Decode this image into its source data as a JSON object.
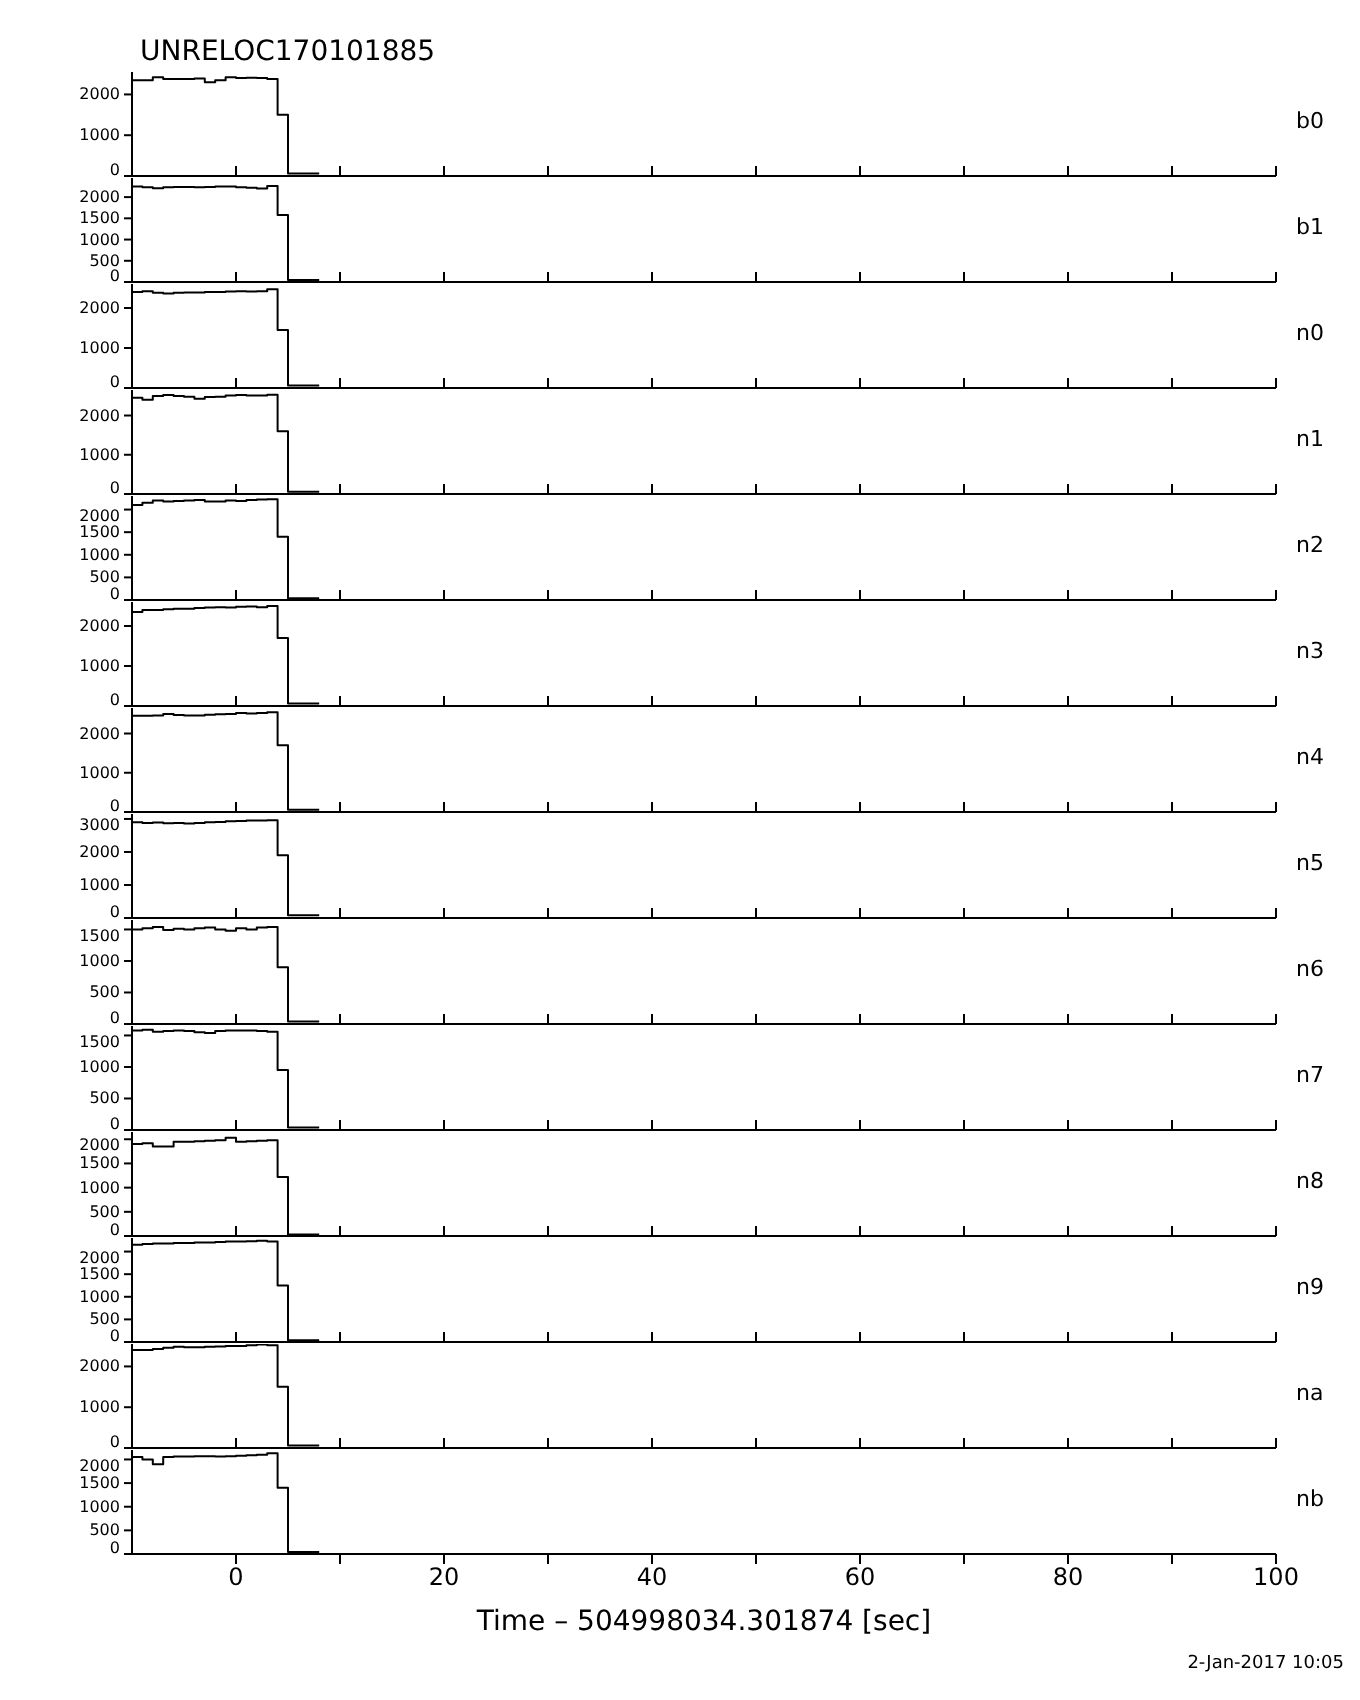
{
  "chart_data": [
    {
      "type": "histogram",
      "title": "UNRELOC170101885",
      "tick_labels": "y",
      "bins": [
        -10,
        -9,
        -8,
        -7,
        -6,
        -5,
        -4,
        -3,
        -2,
        -1,
        0,
        1,
        2,
        3,
        4,
        5,
        6,
        7,
        8
      ],
      "xlim": [
        -10,
        100
      ],
      "xticks": [
        0,
        {
          "value": 10,
          "label": null
        },
        20,
        {
          "value": 30,
          "label": null
        },
        40,
        {
          "value": 50,
          "label": null
        },
        60,
        {
          "value": 70,
          "label": null
        },
        80,
        {
          "value": 90,
          "label": null
        },
        100
      ],
      "ylim": [
        0,
        2550
      ],
      "yticks": [
        0,
        1000,
        2000
      ],
      "series": [
        {
          "name": "b0",
          "color": "#000000",
          "values": [
            2350,
            2350,
            2420,
            2380,
            2380,
            2380,
            2390,
            2300,
            2350,
            2420,
            2400,
            2410,
            2400,
            2380,
            1500,
            60,
            60,
            60
          ]
        }
      ]
    },
    {
      "type": "histogram",
      "tick_labels": "y",
      "bins": [
        -10,
        -9,
        -8,
        -7,
        -6,
        -5,
        -4,
        -3,
        -2,
        -1,
        0,
        1,
        2,
        3,
        4,
        5,
        6,
        7,
        8
      ],
      "xlim": [
        -10,
        100
      ],
      "xticks": [
        0,
        {
          "value": 10,
          "label": null
        },
        20,
        {
          "value": 30,
          "label": null
        },
        40,
        {
          "value": 50,
          "label": null
        },
        60,
        {
          "value": 70,
          "label": null
        },
        80,
        {
          "value": 90,
          "label": null
        },
        100
      ],
      "ylim": [
        0,
        2450
      ],
      "yticks": [
        0,
        500,
        1000,
        1500,
        2000
      ],
      "series": [
        {
          "name": "b1",
          "color": "#000000",
          "values": [
            2250,
            2230,
            2210,
            2230,
            2240,
            2240,
            2230,
            2240,
            2250,
            2250,
            2230,
            2220,
            2200,
            2260,
            1580,
            50,
            50,
            50
          ]
        }
      ]
    },
    {
      "type": "histogram",
      "tick_labels": "y",
      "bins": [
        -10,
        -9,
        -8,
        -7,
        -6,
        -5,
        -4,
        -3,
        -2,
        -1,
        0,
        1,
        2,
        3,
        4,
        5,
        6,
        7,
        8
      ],
      "xlim": [
        -10,
        100
      ],
      "xticks": [
        0,
        {
          "value": 10,
          "label": null
        },
        20,
        {
          "value": 30,
          "label": null
        },
        40,
        {
          "value": 50,
          "label": null
        },
        60,
        {
          "value": 70,
          "label": null
        },
        80,
        {
          "value": 90,
          "label": null
        },
        100
      ],
      "ylim": [
        0,
        2600
      ],
      "yticks": [
        0,
        1000,
        2000
      ],
      "series": [
        {
          "name": "n0",
          "color": "#000000",
          "values": [
            2400,
            2420,
            2380,
            2360,
            2380,
            2390,
            2390,
            2400,
            2400,
            2410,
            2420,
            2410,
            2420,
            2470,
            1450,
            60,
            60,
            60
          ]
        }
      ]
    },
    {
      "type": "histogram",
      "tick_labels": "y",
      "bins": [
        -10,
        -9,
        -8,
        -7,
        -6,
        -5,
        -4,
        -3,
        -2,
        -1,
        0,
        1,
        2,
        3,
        4,
        5,
        6,
        7,
        8
      ],
      "xlim": [
        -10,
        100
      ],
      "xticks": [
        0,
        {
          "value": 10,
          "label": null
        },
        20,
        {
          "value": 30,
          "label": null
        },
        40,
        {
          "value": 50,
          "label": null
        },
        60,
        {
          "value": 70,
          "label": null
        },
        80,
        {
          "value": 90,
          "label": null
        },
        100
      ],
      "ylim": [
        0,
        2650
      ],
      "yticks": [
        0,
        1000,
        2000
      ],
      "series": [
        {
          "name": "n1",
          "color": "#000000",
          "values": [
            2450,
            2400,
            2500,
            2520,
            2500,
            2480,
            2430,
            2470,
            2480,
            2510,
            2520,
            2510,
            2510,
            2530,
            1600,
            60,
            60,
            60
          ]
        }
      ]
    },
    {
      "type": "histogram",
      "tick_labels": "y",
      "bins": [
        -10,
        -9,
        -8,
        -7,
        -6,
        -5,
        -4,
        -3,
        -2,
        -1,
        0,
        1,
        2,
        3,
        4,
        5,
        6,
        7,
        8
      ],
      "xlim": [
        -10,
        100
      ],
      "xticks": [
        0,
        {
          "value": 10,
          "label": null
        },
        20,
        {
          "value": 30,
          "label": null
        },
        40,
        {
          "value": 50,
          "label": null
        },
        60,
        {
          "value": 70,
          "label": null
        },
        80,
        {
          "value": 90,
          "label": null
        },
        100
      ],
      "ylim": [
        0,
        2300
      ],
      "yticks": [
        0,
        500,
        1000,
        1500,
        2000
      ],
      "series": [
        {
          "name": "n2",
          "color": "#000000",
          "values": [
            2100,
            2150,
            2200,
            2180,
            2190,
            2200,
            2210,
            2180,
            2180,
            2200,
            2190,
            2210,
            2220,
            2230,
            1400,
            40,
            40,
            40
          ]
        }
      ]
    },
    {
      "type": "histogram",
      "tick_labels": "y",
      "bins": [
        -10,
        -9,
        -8,
        -7,
        -6,
        -5,
        -4,
        -3,
        -2,
        -1,
        0,
        1,
        2,
        3,
        4,
        5,
        6,
        7,
        8
      ],
      "xlim": [
        -10,
        100
      ],
      "xticks": [
        0,
        {
          "value": 10,
          "label": null
        },
        20,
        {
          "value": 30,
          "label": null
        },
        40,
        {
          "value": 50,
          "label": null
        },
        60,
        {
          "value": 70,
          "label": null
        },
        80,
        {
          "value": 90,
          "label": null
        },
        100
      ],
      "ylim": [
        0,
        2600
      ],
      "yticks": [
        0,
        1000,
        2000
      ],
      "series": [
        {
          "name": "n3",
          "color": "#000000",
          "values": [
            2350,
            2400,
            2400,
            2420,
            2430,
            2430,
            2450,
            2460,
            2470,
            2460,
            2480,
            2490,
            2470,
            2500,
            1700,
            60,
            60,
            60
          ]
        }
      ]
    },
    {
      "type": "histogram",
      "tick_labels": "y",
      "bins": [
        -10,
        -9,
        -8,
        -7,
        -6,
        -5,
        -4,
        -3,
        -2,
        -1,
        0,
        1,
        2,
        3,
        4,
        5,
        6,
        7,
        8
      ],
      "xlim": [
        -10,
        100
      ],
      "xticks": [
        0,
        {
          "value": 10,
          "label": null
        },
        20,
        {
          "value": 30,
          "label": null
        },
        40,
        {
          "value": 50,
          "label": null
        },
        60,
        {
          "value": 70,
          "label": null
        },
        80,
        {
          "value": 90,
          "label": null
        },
        100
      ],
      "ylim": [
        0,
        2650
      ],
      "yticks": [
        0,
        1000,
        2000
      ],
      "series": [
        {
          "name": "n4",
          "color": "#000000",
          "values": [
            2450,
            2450,
            2460,
            2500,
            2470,
            2460,
            2460,
            2480,
            2490,
            2500,
            2520,
            2510,
            2520,
            2540,
            1700,
            60,
            60,
            60
          ]
        }
      ]
    },
    {
      "type": "histogram",
      "tick_labels": "y",
      "bins": [
        -10,
        -9,
        -8,
        -7,
        -6,
        -5,
        -4,
        -3,
        -2,
        -1,
        0,
        1,
        2,
        3,
        4,
        5,
        6,
        7,
        8
      ],
      "xlim": [
        -10,
        100
      ],
      "xticks": [
        0,
        {
          "value": 10,
          "label": null
        },
        20,
        {
          "value": 30,
          "label": null
        },
        40,
        {
          "value": 50,
          "label": null
        },
        60,
        {
          "value": 70,
          "label": null
        },
        80,
        {
          "value": 90,
          "label": null
        },
        100
      ],
      "ylim": [
        0,
        3150
      ],
      "yticks": [
        0,
        1000,
        2000,
        3000
      ],
      "series": [
        {
          "name": "n5",
          "color": "#000000",
          "values": [
            2900,
            2880,
            2890,
            2870,
            2880,
            2860,
            2880,
            2900,
            2910,
            2930,
            2940,
            2950,
            2950,
            2960,
            1900,
            80,
            80,
            80
          ]
        }
      ]
    },
    {
      "type": "histogram",
      "tick_labels": "y",
      "bins": [
        -10,
        -9,
        -8,
        -7,
        -6,
        -5,
        -4,
        -3,
        -2,
        -1,
        0,
        1,
        2,
        3,
        4,
        5,
        6,
        7,
        8
      ],
      "xlim": [
        -10,
        100
      ],
      "xticks": [
        0,
        {
          "value": 10,
          "label": null
        },
        20,
        {
          "value": 30,
          "label": null
        },
        40,
        {
          "value": 50,
          "label": null
        },
        60,
        {
          "value": 70,
          "label": null
        },
        80,
        {
          "value": 90,
          "label": null
        },
        100
      ],
      "ylim": [
        0,
        1650
      ],
      "yticks": [
        0,
        500,
        1000,
        1500
      ],
      "series": [
        {
          "name": "n6",
          "color": "#000000",
          "values": [
            1500,
            1520,
            1540,
            1490,
            1510,
            1500,
            1520,
            1530,
            1500,
            1480,
            1520,
            1500,
            1530,
            1540,
            900,
            40,
            40,
            40
          ]
        }
      ]
    },
    {
      "type": "histogram",
      "tick_labels": "y",
      "bins": [
        -10,
        -9,
        -8,
        -7,
        -6,
        -5,
        -4,
        -3,
        -2,
        -1,
        0,
        1,
        2,
        3,
        4,
        5,
        6,
        7,
        8
      ],
      "xlim": [
        -10,
        100
      ],
      "xticks": [
        0,
        {
          "value": 10,
          "label": null
        },
        20,
        {
          "value": 30,
          "label": null
        },
        40,
        {
          "value": 50,
          "label": null
        },
        60,
        {
          "value": 70,
          "label": null
        },
        80,
        {
          "value": 90,
          "label": null
        },
        100
      ],
      "ylim": [
        0,
        1650
      ],
      "yticks": [
        0,
        500,
        1000,
        1500
      ],
      "series": [
        {
          "name": "n7",
          "color": "#000000",
          "values": [
            1580,
            1590,
            1560,
            1570,
            1580,
            1570,
            1550,
            1540,
            1570,
            1580,
            1580,
            1580,
            1570,
            1560,
            950,
            40,
            40,
            40
          ]
        }
      ]
    },
    {
      "type": "histogram",
      "tick_labels": "y",
      "bins": [
        -10,
        -9,
        -8,
        -7,
        -6,
        -5,
        -4,
        -3,
        -2,
        -1,
        0,
        1,
        2,
        3,
        4,
        5,
        6,
        7,
        8
      ],
      "xlim": [
        -10,
        100
      ],
      "xticks": [
        0,
        {
          "value": 10,
          "label": null
        },
        20,
        {
          "value": 30,
          "label": null
        },
        40,
        {
          "value": 50,
          "label": null
        },
        60,
        {
          "value": 70,
          "label": null
        },
        80,
        {
          "value": 90,
          "label": null
        },
        100
      ],
      "ylim": [
        0,
        2150
      ],
      "yticks": [
        0,
        500,
        1000,
        1500,
        2000
      ],
      "series": [
        {
          "name": "n8",
          "color": "#000000",
          "values": [
            1900,
            1920,
            1850,
            1850,
            1950,
            1950,
            1960,
            1970,
            1980,
            2030,
            1950,
            1960,
            1970,
            1980,
            1220,
            30,
            30,
            30
          ]
        }
      ]
    },
    {
      "type": "histogram",
      "tick_labels": "y",
      "bins": [
        -10,
        -9,
        -8,
        -7,
        -6,
        -5,
        -4,
        -3,
        -2,
        -1,
        0,
        1,
        2,
        3,
        4,
        5,
        6,
        7,
        8
      ],
      "xlim": [
        -10,
        100
      ],
      "xticks": [
        0,
        {
          "value": 10,
          "label": null
        },
        20,
        {
          "value": 30,
          "label": null
        },
        40,
        {
          "value": 50,
          "label": null
        },
        60,
        {
          "value": 70,
          "label": null
        },
        80,
        {
          "value": 90,
          "label": null
        },
        100
      ],
      "ylim": [
        0,
        2300
      ],
      "yticks": [
        0,
        500,
        1000,
        1500,
        2000
      ],
      "series": [
        {
          "name": "n9",
          "color": "#000000",
          "values": [
            2150,
            2170,
            2180,
            2180,
            2190,
            2190,
            2200,
            2200,
            2210,
            2220,
            2220,
            2230,
            2240,
            2220,
            1250,
            40,
            40,
            40
          ]
        }
      ]
    },
    {
      "type": "histogram",
      "tick_labels": "y",
      "bins": [
        -10,
        -9,
        -8,
        -7,
        -6,
        -5,
        -4,
        -3,
        -2,
        -1,
        0,
        1,
        2,
        3,
        4,
        5,
        6,
        7,
        8
      ],
      "xlim": [
        -10,
        100
      ],
      "xticks": [
        0,
        {
          "value": 10,
          "label": null
        },
        20,
        {
          "value": 30,
          "label": null
        },
        40,
        {
          "value": 50,
          "label": null
        },
        60,
        {
          "value": 70,
          "label": null
        },
        80,
        {
          "value": 90,
          "label": null
        },
        100
      ],
      "ylim": [
        0,
        2550
      ],
      "yticks": [
        0,
        1000,
        2000
      ],
      "series": [
        {
          "name": "na",
          "color": "#000000",
          "values": [
            2400,
            2400,
            2430,
            2460,
            2480,
            2470,
            2470,
            2480,
            2490,
            2500,
            2500,
            2520,
            2540,
            2520,
            1500,
            60,
            60,
            60
          ]
        }
      ]
    },
    {
      "type": "histogram",
      "xlabel": "Time – 504998034.301874 [sec]",
      "annotations": [
        "2-Jan-2017 10:05"
      ],
      "bins": [
        -10,
        -9,
        -8,
        -7,
        -6,
        -5,
        -4,
        -3,
        -2,
        -1,
        0,
        1,
        2,
        3,
        4,
        5,
        6,
        7,
        8
      ],
      "xlim": [
        -10,
        100
      ],
      "xticks": [
        0,
        {
          "value": 10,
          "label": null
        },
        20,
        {
          "value": 30,
          "label": null
        },
        40,
        {
          "value": 50,
          "label": null
        },
        60,
        {
          "value": 70,
          "label": null
        },
        80,
        {
          "value": 90,
          "label": null
        },
        100
      ],
      "ylim": [
        0,
        2200
      ],
      "yticks": [
        0,
        500,
        1000,
        1500,
        2000
      ],
      "series": [
        {
          "name": "nb",
          "color": "#000000",
          "values": [
            2050,
            2000,
            1900,
            2050,
            2060,
            2060,
            2070,
            2070,
            2060,
            2070,
            2080,
            2090,
            2100,
            2130,
            1400,
            40,
            40,
            40
          ]
        }
      ]
    }
  ]
}
